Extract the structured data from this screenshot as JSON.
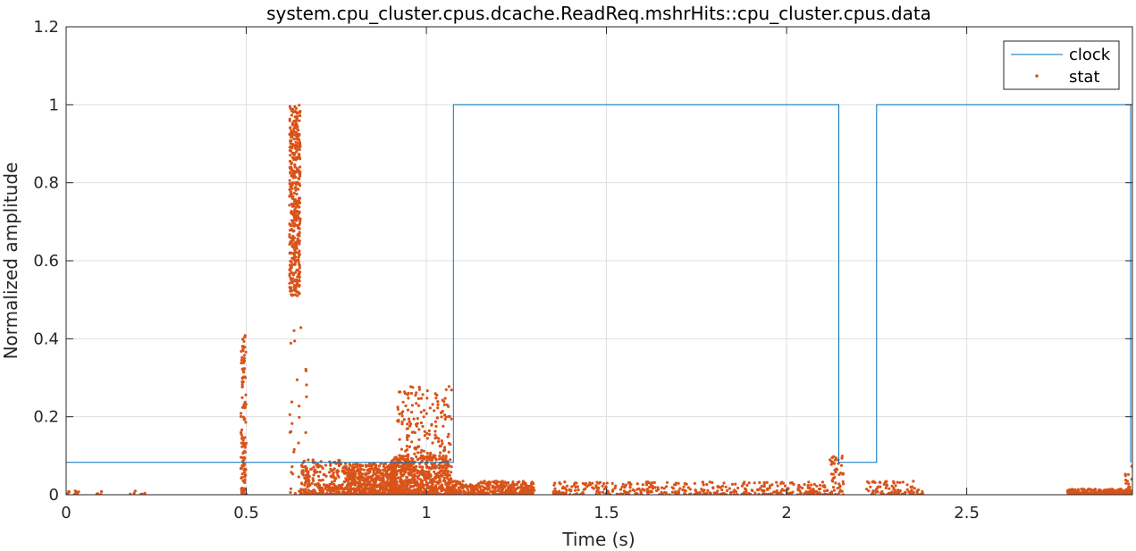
{
  "chart_data": {
    "type": "line",
    "title": "system.cpu_cluster.cpus.dcache.ReadReq.mshrHits::cpu_cluster.cpus.data",
    "xlabel": "Time (s)",
    "ylabel": "Normalized amplitude",
    "xlim": [
      0,
      2.96
    ],
    "ylim": [
      0,
      1.2
    ],
    "xticks": [
      0,
      0.5,
      1,
      1.5,
      2,
      2.5
    ],
    "xtick_labels": [
      "0",
      "0.5",
      "1",
      "1.5",
      "2",
      "2.5"
    ],
    "yticks": [
      0,
      0.2,
      0.4,
      0.6,
      0.8,
      1,
      1.2
    ],
    "ytick_labels": [
      "0",
      "0.2",
      "0.4",
      "0.6",
      "0.8",
      "1",
      "1.2"
    ],
    "grid": true,
    "legend_position": "top-right",
    "colors": {
      "clock": "#0072bd",
      "stat": "#d95319"
    },
    "series": [
      {
        "name": "clock",
        "style": "line",
        "x": [
          0,
          1.075,
          1.075,
          2.145,
          2.145,
          2.25,
          2.25,
          2.955,
          2.955
        ],
        "y": [
          0.083,
          0.083,
          1.0,
          1.0,
          0.083,
          0.083,
          1.0,
          1.0,
          0.083
        ]
      },
      {
        "name": "stat",
        "style": "points",
        "clusters": [
          {
            "x_range": [
              0.0,
              0.04
            ],
            "y_range": [
              0.0,
              0.01
            ],
            "count": 12
          },
          {
            "x_range": [
              0.08,
              0.1
            ],
            "y_range": [
              0.0,
              0.01
            ],
            "count": 4
          },
          {
            "x_range": [
              0.17,
              0.22
            ],
            "y_range": [
              0.0,
              0.012
            ],
            "count": 6
          },
          {
            "x_range": [
              0.485,
              0.5
            ],
            "y_range": [
              0.0,
              0.41
            ],
            "count": 120
          },
          {
            "x_range": [
              0.62,
              0.65
            ],
            "y_range": [
              0.51,
              1.0
            ],
            "count": 420
          },
          {
            "x_range": [
              0.62,
              0.67
            ],
            "y_range": [
              0.0,
              0.45
            ],
            "count": 40
          },
          {
            "x_range": [
              0.65,
              0.78
            ],
            "y_range": [
              0.0,
              0.09
            ],
            "count": 260
          },
          {
            "x_range": [
              0.78,
              0.92
            ],
            "y_range": [
              0.0,
              0.08
            ],
            "count": 520
          },
          {
            "x_range": [
              0.9,
              1.07
            ],
            "y_range": [
              0.0,
              0.1
            ],
            "count": 700
          },
          {
            "x_range": [
              0.92,
              1.07
            ],
            "y_range": [
              0.1,
              0.28
            ],
            "count": 150
          },
          {
            "x_range": [
              1.07,
              1.3
            ],
            "y_range": [
              0.0,
              0.035
            ],
            "count": 380
          },
          {
            "x_range": [
              1.35,
              2.12
            ],
            "y_range": [
              0.0,
              0.033
            ],
            "count": 420
          },
          {
            "x_range": [
              2.12,
              2.16
            ],
            "y_range": [
              0.0,
              0.1
            ],
            "count": 50
          },
          {
            "x_range": [
              2.22,
              2.38
            ],
            "y_range": [
              0.0,
              0.035
            ],
            "count": 90
          },
          {
            "x_range": [
              2.78,
              2.96
            ],
            "y_range": [
              0.0,
              0.015
            ],
            "count": 320
          },
          {
            "x_range": [
              2.94,
              2.96
            ],
            "y_range": [
              0.0,
              0.075
            ],
            "count": 20
          }
        ]
      }
    ]
  }
}
